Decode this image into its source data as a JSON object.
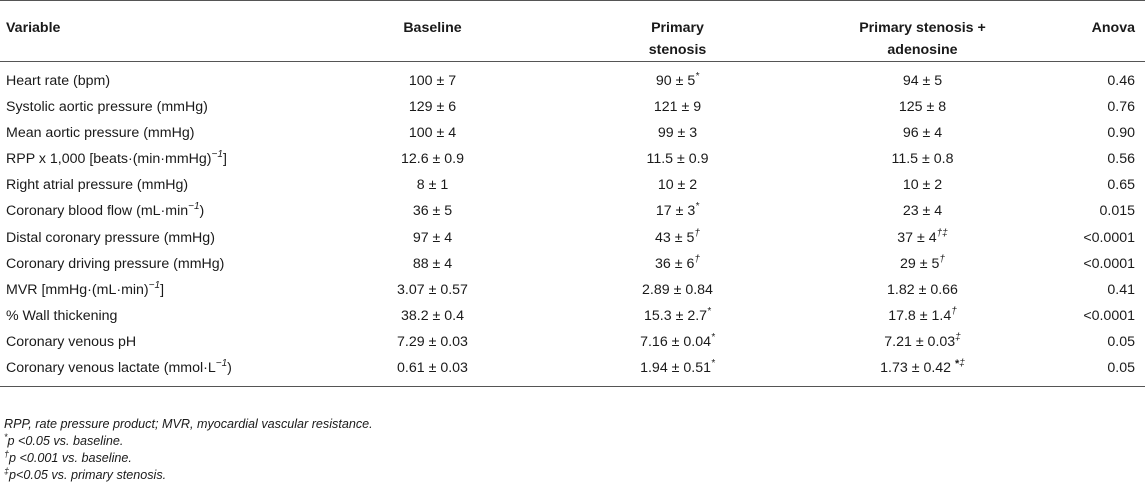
{
  "table": {
    "headers": {
      "variable": "Variable",
      "baseline": "Baseline",
      "primary_l1": "Primary",
      "primary_l2": "stenosis",
      "aden_l1": "Primary stenosis +",
      "aden_l2": "adenosine",
      "anova": "Anova"
    },
    "rows": [
      {
        "variable": "Heart rate (bpm)",
        "baseline": "100 ± 7",
        "primary": "90 ± 5",
        "primary_mark": "*",
        "aden": "94 ± 5",
        "aden_mark": "",
        "aden_bold": "",
        "anova": "0.46"
      },
      {
        "variable": "Systolic aortic pressure (mmHg)",
        "baseline": "129 ± 6",
        "primary": "121 ± 9",
        "primary_mark": "",
        "aden": "125 ± 8",
        "aden_mark": "",
        "aden_bold": "",
        "anova": "0.76"
      },
      {
        "variable": "Mean aortic pressure (mmHg)",
        "baseline": "100 ± 4",
        "primary": "99 ± 3",
        "primary_mark": "",
        "aden": "96 ± 4",
        "aden_mark": "",
        "aden_bold": "",
        "anova": "0.90"
      },
      {
        "variable": "RPP x 1,000 [beats·(min·mmHg)",
        "variable_sup": "−1",
        "variable_end": "]",
        "baseline": "12.6 ± 0.9",
        "primary": "11.5 ± 0.9",
        "primary_mark": "",
        "aden": "11.5 ± 0.8",
        "aden_mark": "",
        "aden_bold": "",
        "anova": "0.56"
      },
      {
        "variable": "Right atrial pressure (mmHg)",
        "baseline": "8 ± 1",
        "primary": "10 ± 2",
        "primary_mark": "",
        "aden": "10 ± 2",
        "aden_mark": "",
        "aden_bold": "",
        "anova": "0.65"
      },
      {
        "variable": "Coronary blood flow (mL·min",
        "variable_sup": "−1",
        "variable_end": ")",
        "baseline": "36 ± 5",
        "primary": "17 ± 3",
        "primary_mark": "*",
        "aden": "23 ± 4",
        "aden_mark": "",
        "aden_bold": "",
        "anova": "0.015"
      },
      {
        "variable": "Distal coronary pressure (mmHg)",
        "baseline": "97 ± 4",
        "primary": "43 ± 5",
        "primary_mark": "†",
        "aden": "37 ± 4",
        "aden_mark": "†‡",
        "aden_bold": "",
        "anova": "<0.0001"
      },
      {
        "variable": "Coronary driving pressure (mmHg)",
        "baseline": "88 ± 4",
        "primary": "36 ± 6",
        "primary_mark": "†",
        "aden": "29 ± 5",
        "aden_mark": "†",
        "aden_bold": "",
        "anova": "<0.0001"
      },
      {
        "variable": "MVR [mmHg·(mL·min)",
        "variable_sup": "−1",
        "variable_end": "]",
        "baseline": "3.07 ± 0.57",
        "primary": "2.89 ± 0.84",
        "primary_mark": "",
        "aden": "1.82 ± 0.66",
        "aden_mark": "",
        "aden_bold": "",
        "anova": "0.41"
      },
      {
        "variable": "% Wall thickening",
        "baseline": "38.2 ± 0.4",
        "primary": "15.3 ± 2.7",
        "primary_mark": "*",
        "aden": "17.8 ± 1.4",
        "aden_mark": "†",
        "aden_bold": "",
        "anova": "<0.0001"
      },
      {
        "variable": "Coronary venous pH",
        "baseline": "7.29 ± 0.03",
        "primary": "7.16 ± 0.04",
        "primary_mark": "*",
        "aden": "7.21 ± 0.03",
        "aden_mark": "‡",
        "aden_bold": "",
        "anova": "0.05"
      },
      {
        "variable": "Coronary venous lactate (mmol·L",
        "variable_sup": "−1",
        "variable_end": ")",
        "baseline": "0.61 ± 0.03",
        "primary": "1.94 ± 0.51",
        "primary_mark": "*",
        "aden": "1.73 ± 0.42 ",
        "aden_mark": "‡",
        "aden_bold": "*",
        "anova": "0.05"
      }
    ]
  },
  "notes": {
    "abbreviations": "RPP, rate pressure product; MVR, myocardial vascular resistance.",
    "n1_mark": "*",
    "n1_text": "p <0.05 vs. baseline.",
    "n2_mark": "†",
    "n2_text": "p <0.001 vs. baseline.",
    "n3_mark": "‡",
    "n3_text": "p<0.05 vs. primary stenosis."
  }
}
